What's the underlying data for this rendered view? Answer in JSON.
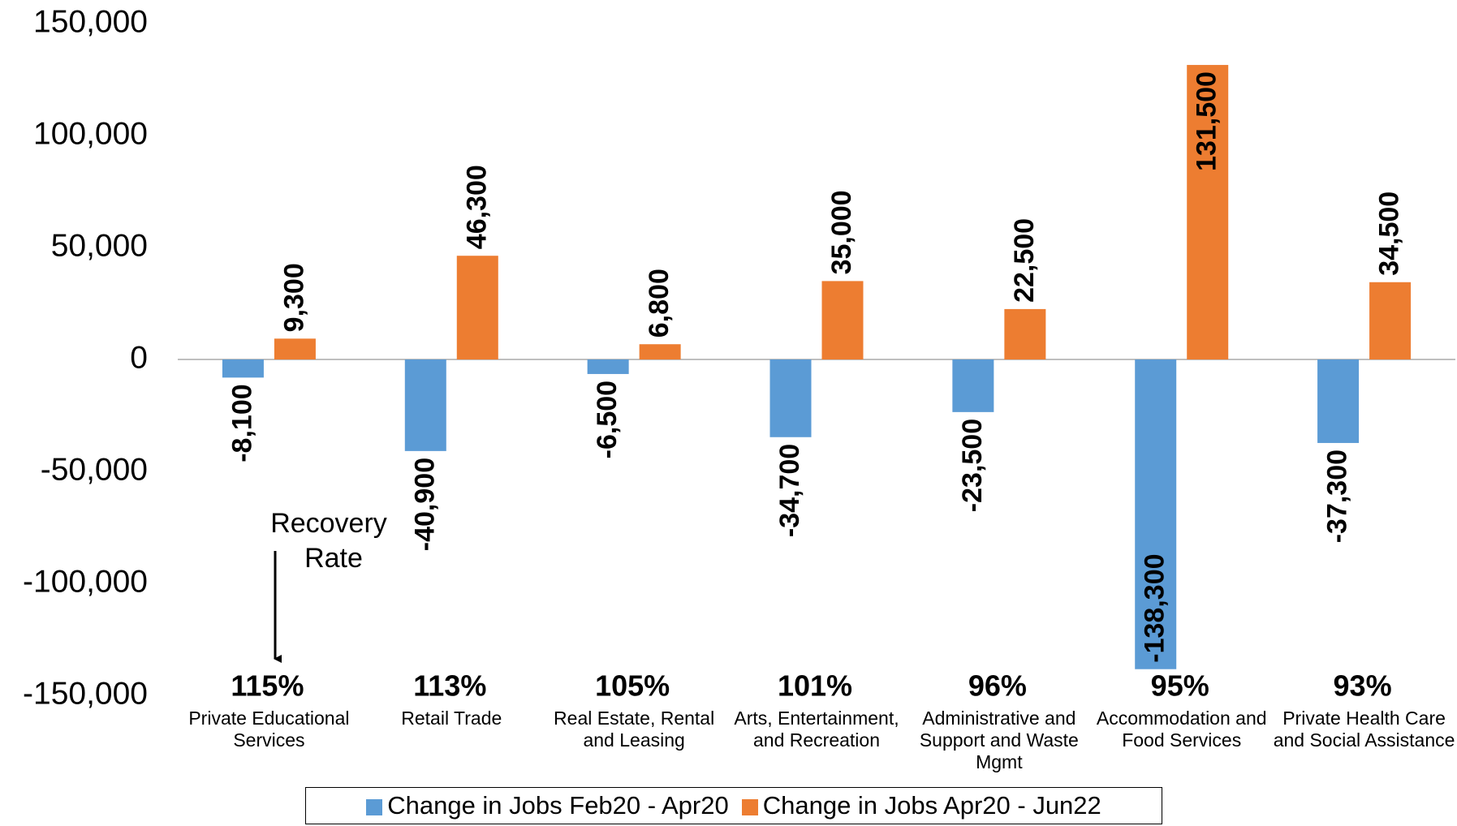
{
  "chart_data": {
    "type": "bar",
    "categories": [
      "Private Educational Services",
      "Retail Trade",
      "Real Estate, Rental and Leasing",
      "Arts, Entertainment, and Recreation",
      "Administrative and Support and Waste Mgmt",
      "Accommodation and Food Services",
      "Private Health Care and Social Assistance"
    ],
    "series": [
      {
        "name": "Change in Jobs Feb20 - Apr20",
        "color": "#5b9bd5",
        "values": [
          -8100,
          -40900,
          -6500,
          -34700,
          -23500,
          -138300,
          -37300
        ],
        "value_labels": [
          "-8,100",
          "-40,900",
          "-6,500",
          "-34,700",
          "-23,500",
          "-138,300",
          "-37,300"
        ]
      },
      {
        "name": "Change in Jobs Apr20 - Jun22",
        "color": "#ed7d31",
        "values": [
          9300,
          46300,
          6800,
          35000,
          22500,
          131500,
          34500
        ],
        "value_labels": [
          "9,300",
          "46,300",
          "6,800",
          "35,000",
          "22,500",
          "131,500",
          "34,500"
        ]
      }
    ],
    "recovery_rates": [
      "115%",
      "113%",
      "105%",
      "101%",
      "96%",
      "95%",
      "93%"
    ],
    "annotation": "Recovery Rate",
    "ylim": [
      -150000,
      150000
    ],
    "yticks": [
      {
        "value": -150000,
        "label": "-150,000"
      },
      {
        "value": -100000,
        "label": "-100,000"
      },
      {
        "value": -50000,
        "label": "-50,000"
      },
      0,
      {
        "value": 50000,
        "label": "50,000"
      },
      {
        "value": 100000,
        "label": "100,000"
      },
      {
        "value": 150000,
        "label": "150,000"
      }
    ],
    "legend": "bottom"
  }
}
